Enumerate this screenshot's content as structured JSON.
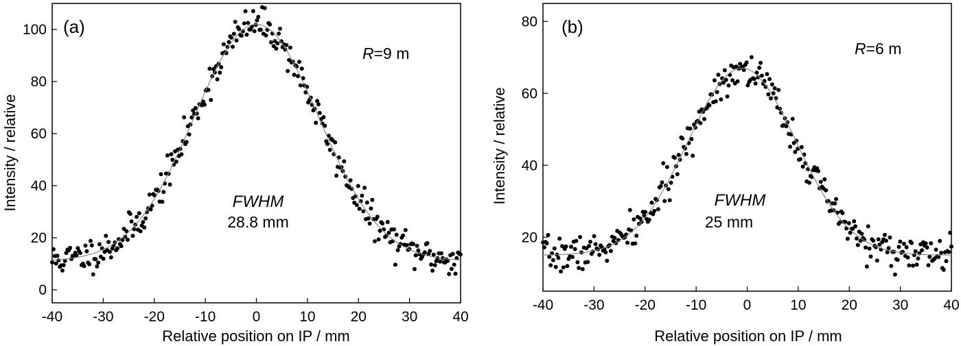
{
  "chart_data": [
    {
      "type": "scatter",
      "panel_label": "(a)",
      "xlabel": "Relative position on IP / mm",
      "ylabel": "Intensity / relative",
      "xlim": [
        -40,
        40
      ],
      "ylim": [
        -5,
        110
      ],
      "xticks": [
        -40,
        -30,
        -20,
        -10,
        0,
        10,
        20,
        30,
        40
      ],
      "yticks": [
        0,
        20,
        40,
        60,
        80,
        100
      ],
      "annotation_param_symbol": "R",
      "annotation_param_value": "=9 m",
      "fwhm_label": "FWHM",
      "fwhm_value": "28.8 mm",
      "fit": {
        "model": "gaussian",
        "baseline": 11,
        "amplitude": 91,
        "center": 0,
        "fwhm": 28.8
      },
      "series": [
        {
          "name": "measured",
          "noise": 3.2,
          "seed": 11,
          "n": 320
        },
        {
          "name": "fit",
          "style": "line"
        }
      ]
    },
    {
      "type": "scatter",
      "panel_label": "(b)",
      "xlabel": "Relative position on IP / mm",
      "ylabel": "Intensity / relative",
      "xlim": [
        -40,
        40
      ],
      "ylim": [
        5,
        85
      ],
      "xticks": [
        -40,
        -30,
        -20,
        -10,
        0,
        10,
        20,
        30,
        40
      ],
      "yticks": [
        20,
        40,
        60,
        80
      ],
      "annotation_param_symbol": "R",
      "annotation_param_value": "=6 m",
      "fwhm_label": "FWHM",
      "fwhm_value": "25 mm",
      "fit": {
        "model": "gaussian",
        "baseline": 15,
        "amplitude": 52,
        "center": -1,
        "fwhm": 25
      },
      "series": [
        {
          "name": "measured",
          "noise": 2.4,
          "seed": 7,
          "n": 320
        },
        {
          "name": "fit",
          "style": "line"
        }
      ]
    }
  ]
}
